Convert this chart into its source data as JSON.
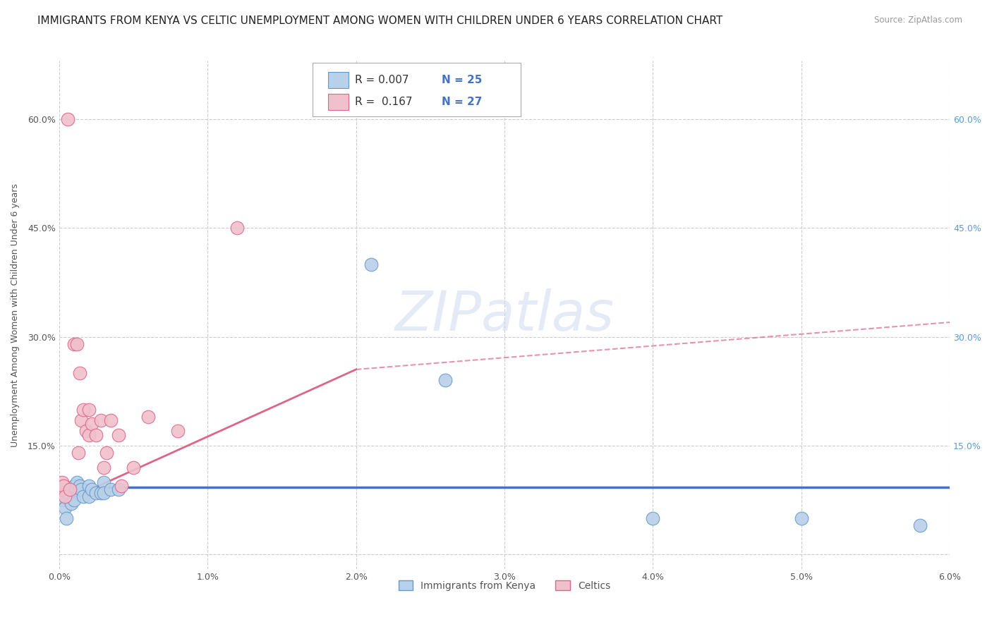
{
  "title": "IMMIGRANTS FROM KENYA VS CELTIC UNEMPLOYMENT AMONG WOMEN WITH CHILDREN UNDER 6 YEARS CORRELATION CHART",
  "source": "Source: ZipAtlas.com",
  "ylabel": "Unemployment Among Women with Children Under 6 years",
  "xlim": [
    0.0,
    0.06
  ],
  "ylim": [
    -0.02,
    0.68
  ],
  "x_ticks": [
    0.0,
    0.01,
    0.02,
    0.03,
    0.04,
    0.05,
    0.06
  ],
  "x_tick_labels": [
    "0.0%",
    "1.0%",
    "2.0%",
    "3.0%",
    "4.0%",
    "5.0%",
    "6.0%"
  ],
  "y_ticks": [
    0.0,
    0.15,
    0.3,
    0.45,
    0.6
  ],
  "y_tick_labels_left": [
    "",
    "15.0%",
    "30.0%",
    "45.0%",
    "60.0%"
  ],
  "y_tick_labels_right": [
    "",
    "15.0%",
    "30.0%",
    "45.0%",
    "60.0%"
  ],
  "watermark": "ZIPatlas",
  "legend_labels": [
    "Immigrants from Kenya",
    "Celtics"
  ],
  "series_blue": {
    "name": "Immigrants from Kenya",
    "R": 0.007,
    "N": 25,
    "color": "#b8d0e8",
    "edge_color": "#6699cc",
    "x": [
      0.0002,
      0.0004,
      0.0005,
      0.0006,
      0.0008,
      0.001,
      0.001,
      0.0012,
      0.0014,
      0.0015,
      0.0016,
      0.002,
      0.002,
      0.0022,
      0.0025,
      0.0028,
      0.003,
      0.003,
      0.0035,
      0.004,
      0.021,
      0.026,
      0.04,
      0.05,
      0.058
    ],
    "y": [
      0.075,
      0.065,
      0.05,
      0.085,
      0.07,
      0.095,
      0.075,
      0.1,
      0.095,
      0.09,
      0.08,
      0.095,
      0.08,
      0.09,
      0.085,
      0.085,
      0.1,
      0.085,
      0.09,
      0.09,
      0.4,
      0.24,
      0.05,
      0.05,
      0.04
    ],
    "trend_color": "#4472c4",
    "trend_ystart": 0.093,
    "trend_yend": 0.093
  },
  "series_pink": {
    "name": "Celtics",
    "R": 0.167,
    "N": 27,
    "color": "#f0c0cc",
    "edge_color": "#dd6688",
    "x": [
      0.0001,
      0.0002,
      0.0003,
      0.0004,
      0.0006,
      0.0007,
      0.001,
      0.0012,
      0.0013,
      0.0014,
      0.0015,
      0.0016,
      0.0018,
      0.002,
      0.002,
      0.0022,
      0.0025,
      0.0028,
      0.003,
      0.0032,
      0.0035,
      0.004,
      0.0042,
      0.005,
      0.006,
      0.008,
      0.012
    ],
    "y": [
      0.09,
      0.1,
      0.095,
      0.08,
      0.6,
      0.09,
      0.29,
      0.29,
      0.14,
      0.25,
      0.185,
      0.2,
      0.17,
      0.2,
      0.165,
      0.18,
      0.165,
      0.185,
      0.12,
      0.14,
      0.185,
      0.165,
      0.095,
      0.12,
      0.19,
      0.17,
      0.45
    ],
    "trend_color": "#dd6688",
    "trend_xstart": 0.0,
    "trend_xend": 0.02,
    "trend_ystart": 0.07,
    "trend_yend": 0.255,
    "trend_ext_xend": 0.06,
    "trend_ext_yend": 0.32
  },
  "background_color": "#ffffff",
  "grid_color": "#cccccc",
  "title_fontsize": 11,
  "axis_label_fontsize": 9,
  "tick_fontsize": 9
}
